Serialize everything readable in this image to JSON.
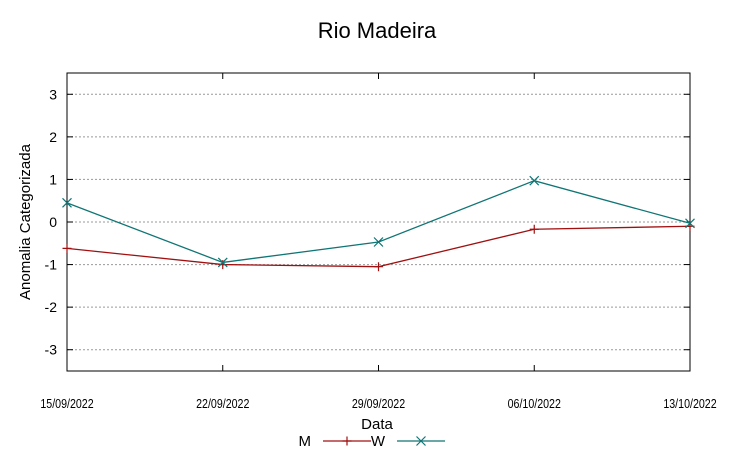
{
  "chart_data": {
    "type": "line",
    "title": "Rio Madeira",
    "xlabel": "Data",
    "ylabel": "Anomalia Categorizada",
    "categories": [
      "15/09/2022",
      "22/09/2022",
      "29/09/2022",
      "06/10/2022",
      "13/10/2022"
    ],
    "series": [
      {
        "name": "M",
        "color": "#a01010",
        "marker": "plus",
        "values": [
          -0.62,
          -1.0,
          -1.05,
          -0.17,
          -0.1
        ]
      },
      {
        "name": "W",
        "color": "#107575",
        "marker": "x",
        "values": [
          0.45,
          -0.95,
          -0.47,
          0.97,
          -0.03
        ]
      }
    ],
    "ylim": [
      -3.5,
      3.5
    ],
    "yticks": [
      -3,
      -2,
      -1,
      0,
      1,
      2,
      3
    ],
    "grid": true,
    "legend_position": "bottom-center"
  }
}
